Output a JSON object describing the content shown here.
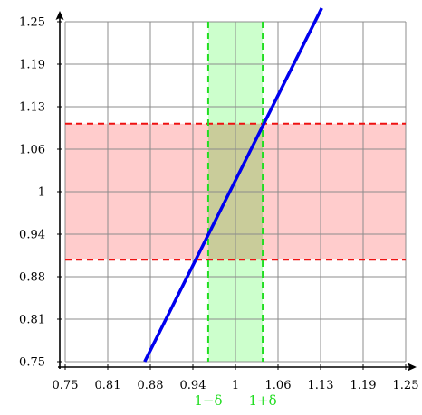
{
  "chart_data": {
    "type": "line",
    "x_ticks": [
      "0.75",
      "0.81",
      "0.88",
      "0.94",
      "1",
      "1.06",
      "1.13",
      "1.19",
      "1.25"
    ],
    "y_ticks": [
      "0.75",
      "0.81",
      "0.88",
      "0.94",
      "1",
      "1.06",
      "1.13",
      "1.19",
      "1.25"
    ],
    "xlim": [
      0.75,
      1.25
    ],
    "ylim": [
      0.75,
      1.25
    ],
    "grid": true,
    "series": [
      {
        "color": "#0000ee",
        "x": [
          0.8667,
          1.1267
        ],
        "y": [
          0.75,
          1.27
        ]
      }
    ],
    "bands": {
      "horizontal": {
        "y_low": 0.9,
        "y_high": 1.1,
        "fill": "#ffbbbb",
        "line": "#ee1111"
      },
      "vertical": {
        "x_low": 0.96,
        "x_high": 1.04,
        "fill": "#aaffaa",
        "line": "#22dd22"
      },
      "overlap_fill": "#c9cc9a"
    },
    "annotations": {
      "delta_low": "1−δ",
      "delta_high": "1+δ",
      "color": "#22dd22"
    }
  }
}
